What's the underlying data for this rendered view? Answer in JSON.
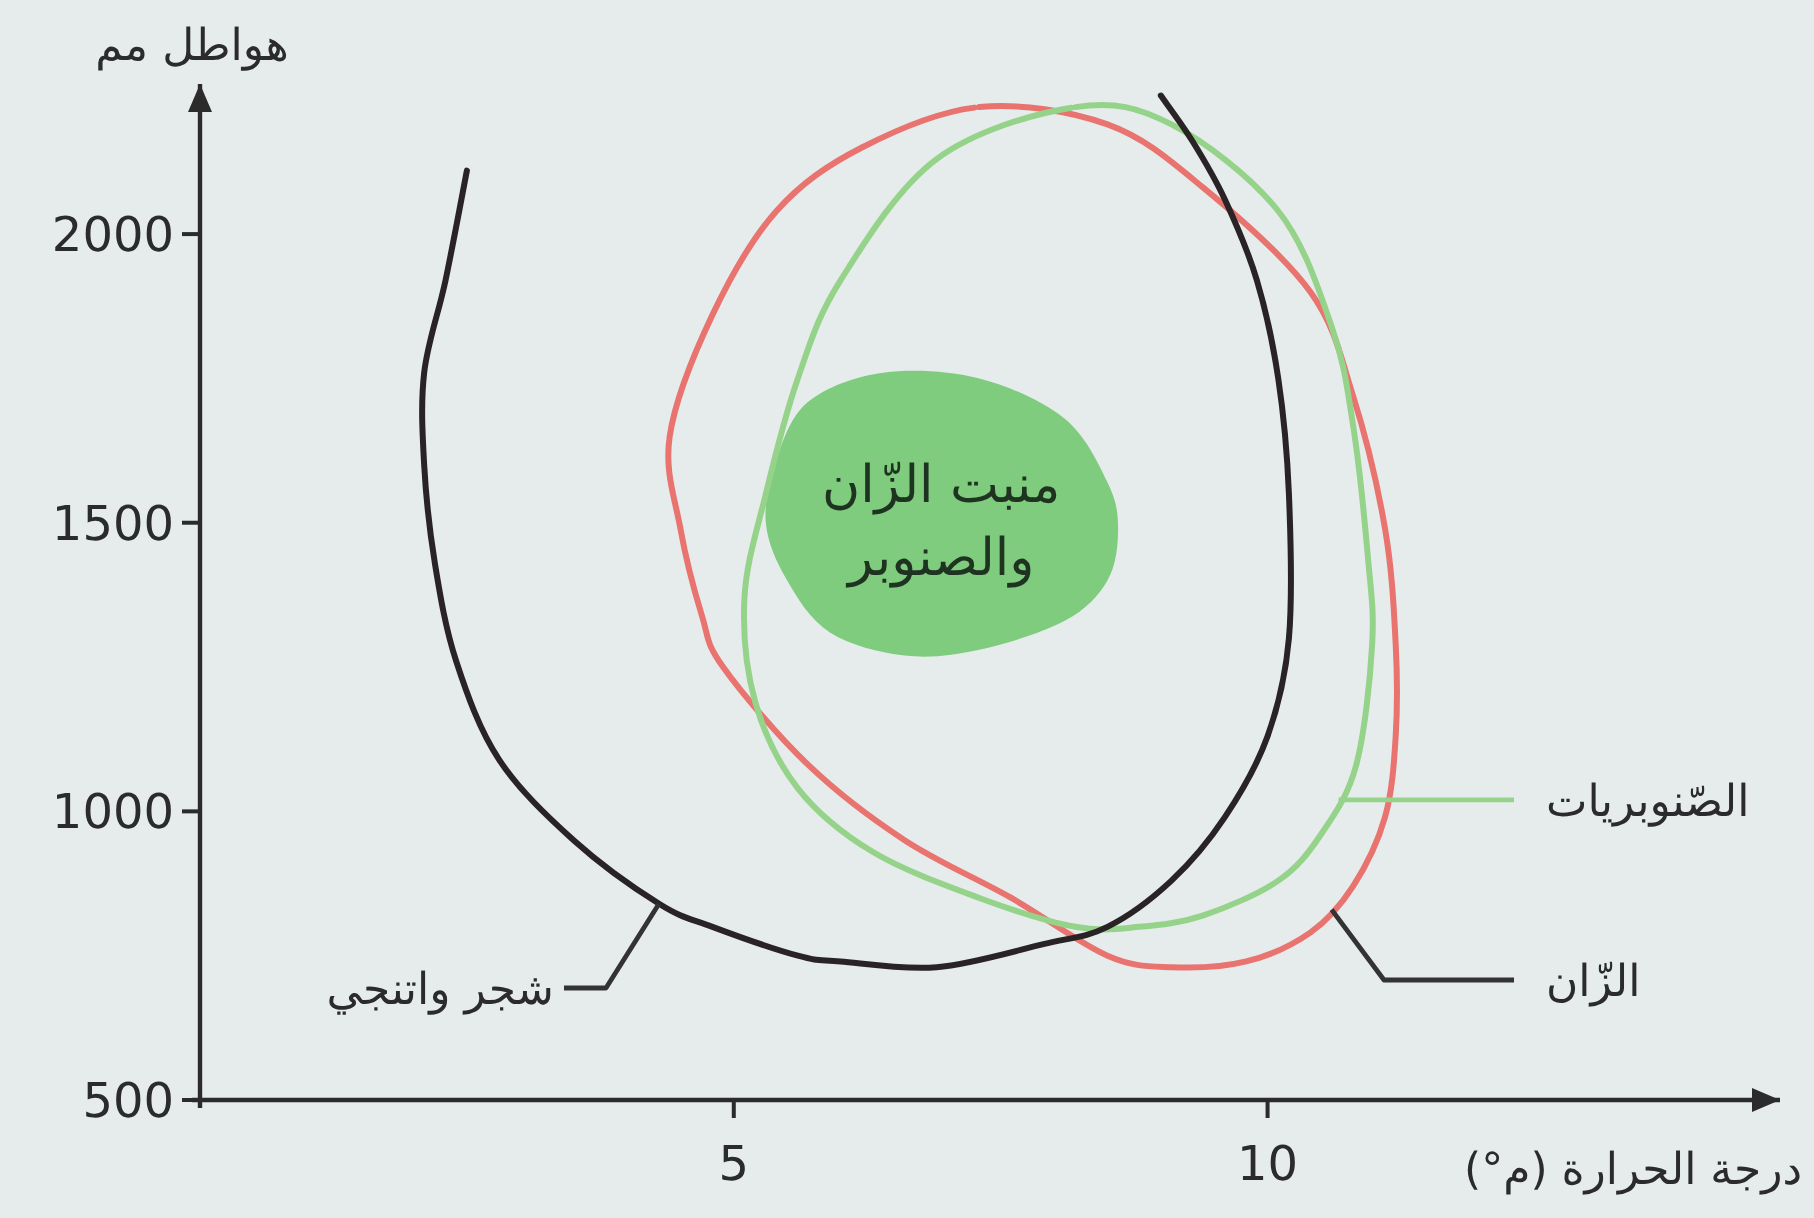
{
  "chart_data": {
    "type": "line",
    "xlabel": "درجة الحرارة (م°)",
    "ylabel": "هواطل مم",
    "xlim": [
      0,
      14.8
    ],
    "ylim": [
      500,
      2260
    ],
    "xticks": [
      5,
      10
    ],
    "yticks": [
      500,
      1000,
      1500,
      2000
    ],
    "series": [
      {
        "type": "area",
        "name": "منبت الزّان والصنوبر",
        "color": "#7fcc7f",
        "x": [
          5.4,
          5.7,
          6.4,
          7.3,
          8.1,
          8.5,
          8.6,
          8.5,
          8.1,
          7.3,
          6.6,
          5.9,
          5.5,
          5.3,
          5.4
        ],
        "values": [
          1610,
          1710,
          1760,
          1750,
          1680,
          1570,
          1490,
          1400,
          1330,
          1280,
          1270,
          1310,
          1400,
          1500,
          1610
        ]
      },
      {
        "name": "الزّان",
        "color": "#e8736f",
        "x": [
          7.3,
          8.5,
          9.4,
          10.4,
          10.8,
          11.1,
          11.2,
          11.2,
          11.1,
          10.8,
          10.4,
          9.8,
          9.1,
          8.5,
          7.6,
          6.6,
          5.7,
          4.9,
          4.7,
          4.5,
          4.4,
          4.8,
          5.4,
          6.2,
          7.3
        ],
        "values": [
          2220,
          2190,
          2080,
          1900,
          1720,
          1490,
          1290,
          1130,
          990,
          870,
          790,
          740,
          730,
          750,
          850,
          950,
          1080,
          1250,
          1340,
          1490,
          1650,
          1860,
          2040,
          2150,
          2220
        ]
      },
      {
        "name": "الصّنوبريات",
        "color": "#96d38a",
        "x": [
          8.2,
          9.1,
          10.1,
          10.6,
          10.8,
          10.94,
          10.98,
          10.83,
          10.5,
          10.1,
          9.4,
          8.8,
          8.2,
          7.3,
          6.3,
          5.6,
          5.2,
          5.1,
          5.3,
          5.6,
          6.0,
          6.9,
          8.2
        ],
        "values": [
          2220,
          2190,
          2040,
          1840,
          1670,
          1440,
          1290,
          1080,
          960,
          880,
          820,
          800,
          800,
          850,
          930,
          1040,
          1190,
          1370,
          1550,
          1750,
          1920,
          2130,
          2220
        ]
      },
      {
        "name": "شجر واتنجي",
        "color": "#2a2326",
        "x": [
          2.5,
          2.3,
          2.1,
          2.1,
          2.2,
          2.4,
          2.8,
          3.5,
          4.3,
          4.8,
          5.6,
          6.0,
          6.9,
          7.9,
          8.5,
          9.1,
          9.6,
          10.0,
          10.2,
          10.2,
          10.1,
          9.9,
          9.6,
          9.3,
          9.0
        ],
        "values": [
          2110,
          1920,
          1760,
          1600,
          1430,
          1260,
          1090,
          950,
          840,
          800,
          750,
          740,
          730,
          770,
          800,
          880,
          990,
          1130,
          1300,
          1550,
          1750,
          1920,
          2060,
          2160,
          2240
        ]
      }
    ]
  }
}
